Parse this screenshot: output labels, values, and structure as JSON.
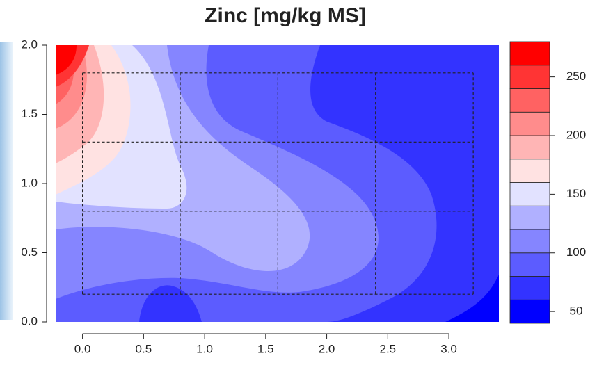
{
  "chart_data": {
    "type": "contour",
    "title": "Zinc [mg/kg MS]",
    "xlim": [
      -0.22,
      3.41
    ],
    "ylim": [
      0,
      2
    ],
    "xticks": [
      {
        "value": 0,
        "label": "0.0"
      },
      0.5,
      {
        "value": 1,
        "label": "1.0"
      },
      1.5,
      {
        "value": 2,
        "label": "2.0"
      },
      2.5,
      {
        "value": 3,
        "label": "3.0"
      }
    ],
    "yticks": [
      {
        "value": 0,
        "label": "0.0"
      },
      0.5,
      {
        "value": 1,
        "label": "1.0"
      },
      1.5,
      {
        "value": 2,
        "label": "2.0"
      }
    ],
    "levels": [
      40,
      60,
      80,
      100,
      120,
      140,
      160,
      180,
      200,
      220,
      240,
      260,
      280
    ],
    "colors": [
      "#0000ff",
      "#3333ff",
      "#5c5cff",
      "#8585ff",
      "#b0b0ff",
      "#e2e2ff",
      "#ffe2e2",
      "#ffb5b5",
      "#ff8c8c",
      "#ff6262",
      "#ff3434",
      "#ff0000"
    ],
    "colorbar_ticks": [
      50,
      100,
      150,
      200,
      250
    ],
    "dashed_grid_x": [
      0,
      0.8,
      1.6,
      2.4,
      3.2
    ],
    "dashed_grid_y": [
      0.2,
      0.8,
      1.3,
      1.8
    ]
  }
}
